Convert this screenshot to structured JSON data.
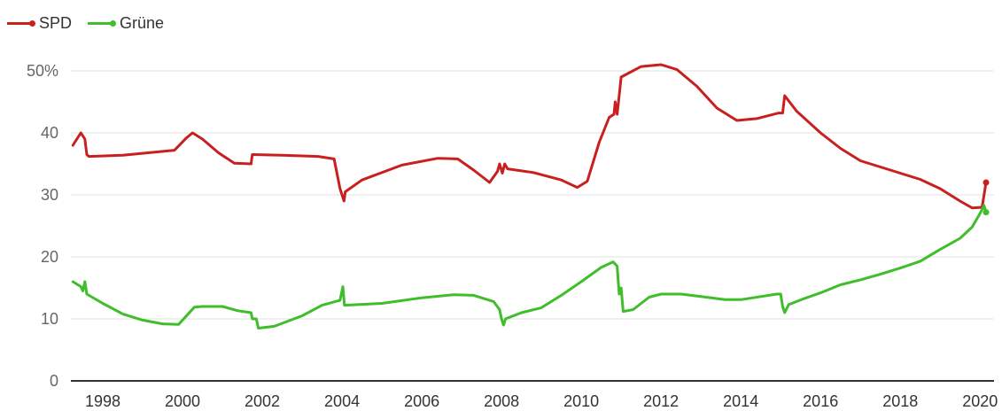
{
  "chart_data": {
    "type": "line",
    "title": "",
    "xlabel": "",
    "ylabel": "",
    "xlim": [
      1997.2,
      2020.35
    ],
    "ylim": [
      0,
      50
    ],
    "grid": true,
    "legend": "top-left",
    "y_ticks": [
      {
        "value": 50,
        "label": "50%"
      },
      {
        "value": 40,
        "label": "40"
      },
      {
        "value": 30,
        "label": "30"
      },
      {
        "value": 20,
        "label": "20"
      },
      {
        "value": 10,
        "label": "10"
      },
      {
        "value": 0,
        "label": "0"
      }
    ],
    "x_ticks": [
      {
        "value": 1998,
        "label": "1998"
      },
      {
        "value": 2000,
        "label": "2000"
      },
      {
        "value": 2002,
        "label": "2002"
      },
      {
        "value": 2004,
        "label": "2004"
      },
      {
        "value": 2006,
        "label": "2006"
      },
      {
        "value": 2008,
        "label": "2008"
      },
      {
        "value": 2010,
        "label": "2010"
      },
      {
        "value": 2012,
        "label": "2012"
      },
      {
        "value": 2014,
        "label": "2014"
      },
      {
        "value": 2016,
        "label": "2016"
      },
      {
        "value": 2018,
        "label": "2018"
      },
      {
        "value": 2020,
        "label": "2020"
      }
    ],
    "series": [
      {
        "name": "SPD",
        "color": "#c8201e",
        "points": [
          [
            1997.25,
            38
          ],
          [
            1997.4,
            39.5
          ],
          [
            1997.45,
            40
          ],
          [
            1997.55,
            39
          ],
          [
            1997.6,
            36.5
          ],
          [
            1997.65,
            36.2
          ],
          [
            1998.5,
            36.4
          ],
          [
            1999.8,
            37.2
          ],
          [
            2000.1,
            39.2
          ],
          [
            2000.25,
            40
          ],
          [
            2000.5,
            39
          ],
          [
            2000.9,
            36.8
          ],
          [
            2001.3,
            35.1
          ],
          [
            2001.72,
            35
          ],
          [
            2001.75,
            36.5
          ],
          [
            2002.5,
            36.4
          ],
          [
            2003.4,
            36.2
          ],
          [
            2003.8,
            35.8
          ],
          [
            2003.95,
            31
          ],
          [
            2004.05,
            29
          ],
          [
            2004.08,
            30.5
          ],
          [
            2004.5,
            32.4
          ],
          [
            2005.5,
            34.8
          ],
          [
            2006.4,
            35.9
          ],
          [
            2006.9,
            35.8
          ],
          [
            2007.3,
            34
          ],
          [
            2007.7,
            32
          ],
          [
            2007.9,
            33.8
          ],
          [
            2007.95,
            35
          ],
          [
            2008.02,
            33.5
          ],
          [
            2008.08,
            35
          ],
          [
            2008.15,
            34.2
          ],
          [
            2008.8,
            33.6
          ],
          [
            2009.5,
            32.4
          ],
          [
            2009.9,
            31.2
          ],
          [
            2010.15,
            32.2
          ],
          [
            2010.45,
            38.5
          ],
          [
            2010.7,
            42.5
          ],
          [
            2010.82,
            43
          ],
          [
            2010.85,
            45
          ],
          [
            2010.9,
            43
          ],
          [
            2010.95,
            46
          ],
          [
            2011.0,
            49
          ],
          [
            2011.5,
            50.7
          ],
          [
            2012.0,
            51
          ],
          [
            2012.4,
            50.2
          ],
          [
            2012.9,
            47.5
          ],
          [
            2013.4,
            44
          ],
          [
            2013.9,
            42
          ],
          [
            2014.4,
            42.3
          ],
          [
            2014.95,
            43.2
          ],
          [
            2015.05,
            43.2
          ],
          [
            2015.1,
            46
          ],
          [
            2015.4,
            43.5
          ],
          [
            2016.0,
            40
          ],
          [
            2016.5,
            37.5
          ],
          [
            2017.0,
            35.5
          ],
          [
            2017.5,
            34.5
          ],
          [
            2018.0,
            33.5
          ],
          [
            2018.5,
            32.5
          ],
          [
            2019.0,
            31
          ],
          [
            2019.5,
            29
          ],
          [
            2019.8,
            27.9
          ],
          [
            2020.05,
            28
          ],
          [
            2020.15,
            32
          ]
        ]
      },
      {
        "name": "Grüne",
        "color": "#3fbd2a",
        "points": [
          [
            1997.25,
            16
          ],
          [
            1997.45,
            15.2
          ],
          [
            1997.5,
            14.5
          ],
          [
            1997.55,
            16
          ],
          [
            1997.6,
            14
          ],
          [
            1998.0,
            12.5
          ],
          [
            1998.5,
            10.8
          ],
          [
            1999.0,
            9.8
          ],
          [
            1999.5,
            9.2
          ],
          [
            1999.9,
            9.1
          ],
          [
            2000.3,
            11.9
          ],
          [
            2000.5,
            12
          ],
          [
            2001.0,
            12
          ],
          [
            2001.4,
            11.3
          ],
          [
            2001.72,
            11
          ],
          [
            2001.75,
            10
          ],
          [
            2001.85,
            10
          ],
          [
            2001.9,
            8.5
          ],
          [
            2002.3,
            8.8
          ],
          [
            2003.0,
            10.5
          ],
          [
            2003.5,
            12.2
          ],
          [
            2003.95,
            13
          ],
          [
            2004.02,
            15.2
          ],
          [
            2004.06,
            12.2
          ],
          [
            2005.0,
            12.5
          ],
          [
            2006.0,
            13.4
          ],
          [
            2006.8,
            13.9
          ],
          [
            2007.3,
            13.8
          ],
          [
            2007.8,
            12.8
          ],
          [
            2007.95,
            11.5
          ],
          [
            2008.0,
            10
          ],
          [
            2008.05,
            9
          ],
          [
            2008.1,
            10
          ],
          [
            2008.5,
            11
          ],
          [
            2009.0,
            11.8
          ],
          [
            2009.5,
            13.8
          ],
          [
            2010.0,
            16
          ],
          [
            2010.5,
            18.3
          ],
          [
            2010.8,
            19.2
          ],
          [
            2010.9,
            18.5
          ],
          [
            2010.95,
            14
          ],
          [
            2011.0,
            15
          ],
          [
            2011.05,
            11.2
          ],
          [
            2011.3,
            11.5
          ],
          [
            2011.7,
            13.5
          ],
          [
            2012.0,
            14
          ],
          [
            2012.5,
            14
          ],
          [
            2013.0,
            13.6
          ],
          [
            2013.6,
            13.1
          ],
          [
            2014.0,
            13.1
          ],
          [
            2014.5,
            13.6
          ],
          [
            2014.9,
            14
          ],
          [
            2015.0,
            14
          ],
          [
            2015.05,
            12
          ],
          [
            2015.1,
            11
          ],
          [
            2015.2,
            12.3
          ],
          [
            2015.6,
            13.3
          ],
          [
            2016.0,
            14.2
          ],
          [
            2016.5,
            15.5
          ],
          [
            2017.0,
            16.3
          ],
          [
            2017.5,
            17.2
          ],
          [
            2018.0,
            18.2
          ],
          [
            2018.5,
            19.3
          ],
          [
            2019.0,
            21.2
          ],
          [
            2019.5,
            23
          ],
          [
            2019.8,
            24.8
          ],
          [
            2020.0,
            27
          ],
          [
            2020.1,
            28.3
          ],
          [
            2020.15,
            27.2
          ]
        ]
      }
    ]
  }
}
